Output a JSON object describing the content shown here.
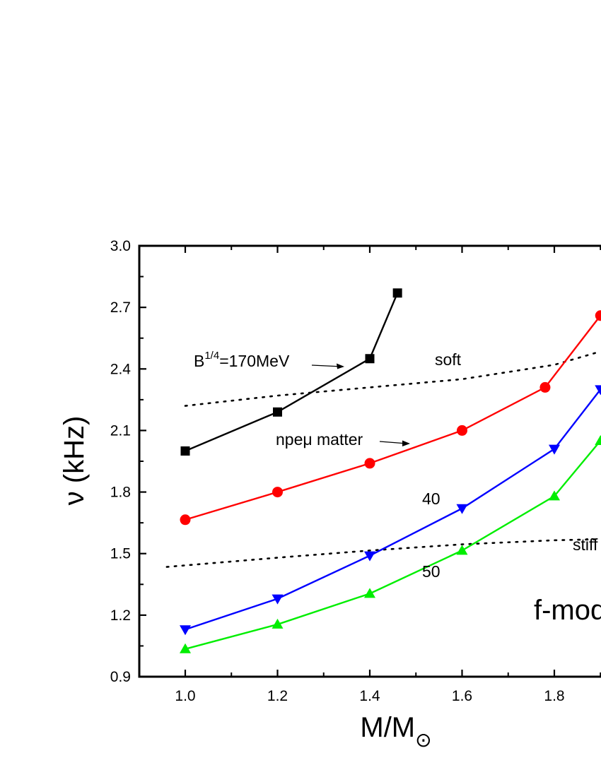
{
  "chart_data": {
    "type": "line",
    "xlabel": "M/M",
    "xlabel_sub": "⊙",
    "ylabel": "ν (kHz)",
    "xlim": [
      0.9,
      2.0
    ],
    "ylim": [
      0.9,
      3.0
    ],
    "x_ticks": [
      "1.0",
      "1.2",
      "1.4",
      "1.6",
      "1.8"
    ],
    "y_ticks": [
      "0.9",
      "1.2",
      "1.5",
      "1.8",
      "2.1",
      "2.4",
      "2.7",
      "3.0"
    ],
    "grid": false,
    "series": [
      {
        "marker": "square",
        "color": "#000000",
        "x": [
          1.0,
          1.2,
          1.4,
          1.46
        ],
        "y": [
          2.0,
          2.19,
          2.45,
          2.77
        ]
      },
      {
        "marker": "circle",
        "color": "#ff0000",
        "x": [
          1.0,
          1.2,
          1.4,
          1.6,
          1.78,
          1.9
        ],
        "y": [
          1.665,
          1.8,
          1.94,
          2.1,
          2.31,
          2.66
        ]
      },
      {
        "marker": "triangle-down",
        "color": "#0000ff",
        "x": [
          1.0,
          1.2,
          1.4,
          1.6,
          1.8,
          1.9
        ],
        "y": [
          1.13,
          1.28,
          1.49,
          1.72,
          2.01,
          2.3
        ]
      },
      {
        "marker": "triangle-up",
        "color": "#00ee00",
        "x": [
          1.0,
          1.2,
          1.4,
          1.6,
          1.8,
          1.9
        ],
        "y": [
          1.035,
          1.155,
          1.305,
          1.515,
          1.78,
          2.05
        ]
      }
    ],
    "reference_curves": [
      {
        "label": "soft",
        "style": "dotted",
        "x": [
          1.0,
          1.2,
          1.4,
          1.6,
          1.8,
          1.9
        ],
        "y": [
          2.22,
          2.27,
          2.31,
          2.35,
          2.42,
          2.485
        ]
      },
      {
        "label": "stiff",
        "style": "dotted",
        "x": [
          0.96,
          1.2,
          1.4,
          1.6,
          1.8,
          1.9
        ],
        "y": [
          1.435,
          1.48,
          1.515,
          1.545,
          1.565,
          1.57
        ]
      }
    ],
    "annotations": {
      "bag": "B",
      "bag_sup": "1/4",
      "bag_value": "=170MeV",
      "npe": "npeμ matter",
      "label_40": "40",
      "label_50": "50",
      "soft": "soft",
      "stiff": "stiff",
      "mode": "f-mode"
    }
  }
}
